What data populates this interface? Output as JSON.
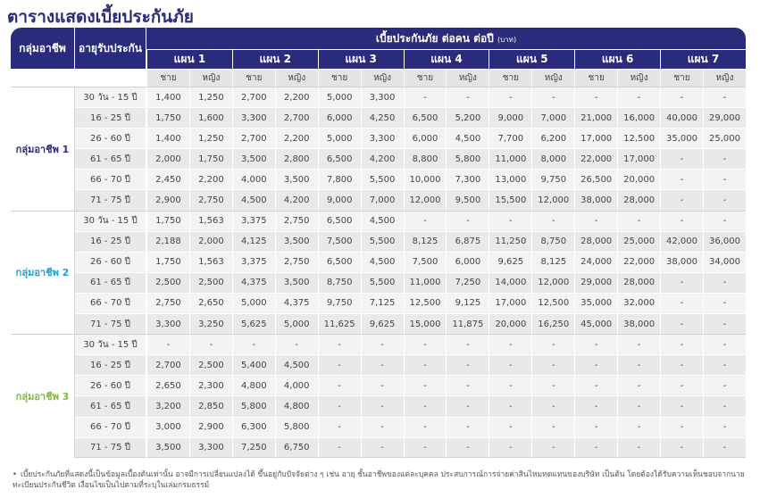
{
  "page_title": "ตารางแสดงเบี้ยประกันภัย",
  "header": {
    "group_col": "กลุ่มอาชีพ",
    "age_col": "อายุรับประกัน",
    "premium_title": "เบี้ยประกันภัย ต่อคน ต่อปี",
    "unit": "(บาท)",
    "plans": [
      "แผน 1",
      "แผน 2",
      "แผน 3",
      "แผน 4",
      "แผน 5",
      "แผน 6",
      "แผน 7"
    ],
    "male": "ชาย",
    "female": "หญิง"
  },
  "groups": [
    {
      "name": "กลุ่มอาชีพ 1",
      "color": "#2a2b7a",
      "rows": [
        {
          "age": "30 วัน - 15 ปี",
          "values": [
            "1,400",
            "1,250",
            "2,700",
            "2,200",
            "5,000",
            "3,300",
            "-",
            "-",
            "-",
            "-",
            "-",
            "-",
            "-",
            "-"
          ]
        },
        {
          "age": "16 - 25 ปี",
          "values": [
            "1,750",
            "1,600",
            "3,300",
            "2,700",
            "6,000",
            "4,250",
            "6,500",
            "5,200",
            "9,000",
            "7,000",
            "21,000",
            "16,000",
            "40,000",
            "29,000"
          ]
        },
        {
          "age": "26 - 60 ปี",
          "values": [
            "1,400",
            "1,250",
            "2,700",
            "2,200",
            "5,000",
            "3,300",
            "6,000",
            "4,500",
            "7,700",
            "6,200",
            "17,000",
            "12,500",
            "35,000",
            "25,000"
          ]
        },
        {
          "age": "61 - 65 ปี",
          "values": [
            "2,000",
            "1,750",
            "3,500",
            "2,800",
            "6,500",
            "4,200",
            "8,800",
            "5,800",
            "11,000",
            "8,000",
            "22,000",
            "17,000",
            "-",
            "-"
          ]
        },
        {
          "age": "66 - 70 ปี",
          "values": [
            "2,450",
            "2,200",
            "4,000",
            "3,500",
            "7,800",
            "5,500",
            "10,000",
            "7,300",
            "13,000",
            "9,750",
            "26,500",
            "20,000",
            "-",
            "-"
          ]
        },
        {
          "age": "71 - 75 ปี",
          "values": [
            "2,900",
            "2,750",
            "4,500",
            "4,200",
            "9,000",
            "7,000",
            "12,000",
            "9,500",
            "15,500",
            "12,000",
            "38,000",
            "28,000",
            "-",
            "-"
          ]
        }
      ]
    },
    {
      "name": "กลุ่มอาชีพ 2",
      "color": "#1aa3d6",
      "rows": [
        {
          "age": "30 วัน - 15 ปี",
          "values": [
            "1,750",
            "1,563",
            "3,375",
            "2,750",
            "6,500",
            "4,500",
            "-",
            "-",
            "-",
            "-",
            "-",
            "-",
            "-",
            "-"
          ]
        },
        {
          "age": "16 - 25 ปี",
          "values": [
            "2,188",
            "2,000",
            "4,125",
            "3,500",
            "7,500",
            "5,500",
            "8,125",
            "6,875",
            "11,250",
            "8,750",
            "28,000",
            "25,000",
            "42,000",
            "36,000"
          ]
        },
        {
          "age": "26 - 60 ปี",
          "values": [
            "1,750",
            "1,563",
            "3,375",
            "2,750",
            "6,500",
            "4,500",
            "7,500",
            "6,000",
            "9,625",
            "8,125",
            "24,000",
            "22,000",
            "38,000",
            "34,000"
          ]
        },
        {
          "age": "61 - 65 ปี",
          "values": [
            "2,500",
            "2,500",
            "4,375",
            "3,500",
            "8,750",
            "5,500",
            "11,000",
            "7,250",
            "14,000",
            "12,000",
            "29,000",
            "28,000",
            "-",
            "-"
          ]
        },
        {
          "age": "66 - 70 ปี",
          "values": [
            "2,750",
            "2,650",
            "5,000",
            "4,375",
            "9,750",
            "7,125",
            "12,500",
            "9,125",
            "17,000",
            "12,500",
            "35,000",
            "32,000",
            "-",
            "-"
          ]
        },
        {
          "age": "71 - 75 ปี",
          "values": [
            "3,300",
            "3,250",
            "5,625",
            "5,000",
            "11,625",
            "9,625",
            "15,000",
            "11,875",
            "20,000",
            "16,250",
            "45,000",
            "38,000",
            "-",
            "-"
          ]
        }
      ]
    },
    {
      "name": "กลุ่มอาชีพ 3",
      "color": "#7cbd3a",
      "rows": [
        {
          "age": "30 วัน - 15 ปี",
          "values": [
            "-",
            "-",
            "-",
            "-",
            "-",
            "-",
            "-",
            "-",
            "-",
            "-",
            "-",
            "-",
            "-",
            "-"
          ]
        },
        {
          "age": "16 - 25 ปี",
          "values": [
            "2,700",
            "2,500",
            "5,400",
            "4,500",
            "-",
            "-",
            "-",
            "-",
            "-",
            "-",
            "-",
            "-",
            "-",
            "-"
          ]
        },
        {
          "age": "26 - 60 ปี",
          "values": [
            "2,650",
            "2,300",
            "4,800",
            "4,000",
            "-",
            "-",
            "-",
            "-",
            "-",
            "-",
            "-",
            "-",
            "-",
            "-"
          ]
        },
        {
          "age": "61 - 65 ปี",
          "values": [
            "3,200",
            "2,850",
            "5,800",
            "4,800",
            "-",
            "-",
            "-",
            "-",
            "-",
            "-",
            "-",
            "-",
            "-",
            "-"
          ]
        },
        {
          "age": "66 - 70 ปี",
          "values": [
            "3,000",
            "2,900",
            "6,300",
            "5,800",
            "-",
            "-",
            "-",
            "-",
            "-",
            "-",
            "-",
            "-",
            "-",
            "-"
          ]
        },
        {
          "age": "71 - 75 ปี",
          "values": [
            "3,500",
            "3,300",
            "7,250",
            "6,750",
            "-",
            "-",
            "-",
            "-",
            "-",
            "-",
            "-",
            "-",
            "-",
            "-"
          ]
        }
      ]
    }
  ],
  "footnote": "เบี้ยประกันภัยที่แสดงนี้เป็นข้อมูลเบื้องต้นเท่านั้น อาจมีการเปลี่ยนแปลงได้ ขึ้นอยู่กับปัจจัยต่าง ๆ เช่น อายุ ชั้นอาชีพของแต่ละบุคคล ประสบการณ์การจ่ายค่าสินไหมทดแทนของบริษัท เป็นต้น โดยต้องได้รับความเห็นชอบจากนายทะเบียนประกันชีวิต เงื่อนไขเป็นไปตามที่ระบุในเล่มกรมธรรม์"
}
